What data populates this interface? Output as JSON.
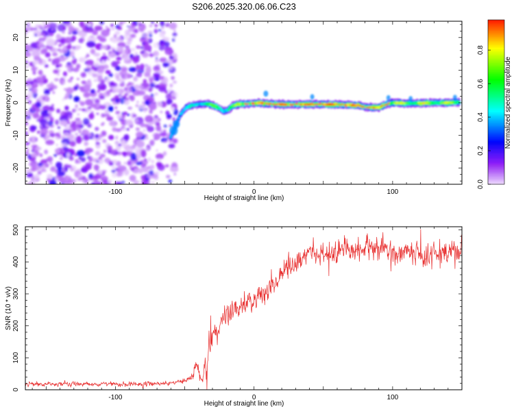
{
  "title": "S206.2025.320.06.06.C23",
  "chart_data": [
    {
      "type": "heatmap",
      "xlabel": "Height of straight line (km)",
      "ylabel": "Frequency (Hz)",
      "xlim": [
        -165,
        150
      ],
      "ylim": [
        -25,
        25
      ],
      "xticks": [
        -100,
        0,
        100
      ],
      "yticks": [
        -20,
        -10,
        0,
        10,
        20
      ],
      "noise_region_x": [
        -165,
        -57
      ],
      "ridge": {
        "x": [
          -60,
          -57,
          -53,
          -49,
          -45,
          -40,
          -33,
          -27,
          -22,
          -19,
          -15,
          -10,
          -3,
          3,
          10,
          20,
          40,
          60,
          75,
          80,
          85,
          90,
          95,
          100,
          110,
          120,
          140,
          148
        ],
        "y": [
          -10.5,
          -7.5,
          -3.5,
          -1.5,
          -0.8,
          -0.5,
          -0.3,
          -1.2,
          -2.6,
          -2.2,
          -0.8,
          -0.4,
          -0.3,
          0,
          -0.3,
          -0.5,
          -0.5,
          -0.5,
          -0.8,
          -1.3,
          -1.5,
          -1.4,
          -0.5,
          0,
          -0.2,
          -0.1,
          0,
          0.1
        ],
        "amp": [
          0.45,
          0.55,
          0.5,
          0.45,
          0.5,
          0.55,
          0.65,
          0.7,
          0.6,
          0.65,
          0.7,
          0.8,
          0.85,
          0.8,
          0.9,
          0.85,
          0.9,
          0.95,
          0.9,
          0.85,
          0.85,
          0.8,
          0.85,
          0.8,
          0.8,
          0.8,
          0.8,
          0.75
        ]
      },
      "colorbar": {
        "label": "Normalized spectral amplitude",
        "ticks": [
          "0.0",
          "0.2",
          "0.4",
          "0.6",
          "0.8"
        ],
        "range": [
          0,
          0.98
        ]
      }
    },
    {
      "type": "line",
      "xlabel": "Height of straight line (km)",
      "ylabel": "SNR (10 * v/v)",
      "xlim": [
        -165,
        150
      ],
      "ylim": [
        0,
        510
      ],
      "xticks": [
        -100,
        0,
        100
      ],
      "yticks": [
        0,
        100,
        200,
        300,
        400,
        500
      ],
      "color": "#e83030",
      "series_trend": {
        "x": [
          -165,
          -120,
          -60,
          -45,
          -42,
          -38,
          -35,
          -30,
          -20,
          -10,
          0,
          10,
          20,
          30,
          35,
          40,
          60,
          80,
          100,
          120,
          140,
          150
        ],
        "y": [
          18,
          18,
          20,
          35,
          70,
          30,
          60,
          170,
          230,
          260,
          280,
          310,
          370,
          400,
          410,
          420,
          430,
          440,
          440,
          425,
          420,
          440
        ]
      },
      "noise": {
        "x": [
          -165,
          -46,
          -45,
          -42,
          -38,
          -32,
          0,
          30,
          60,
          100,
          150
        ],
        "amplitude": [
          6,
          6,
          12,
          18,
          22,
          28,
          30,
          30,
          28,
          28,
          32
        ]
      }
    }
  ]
}
